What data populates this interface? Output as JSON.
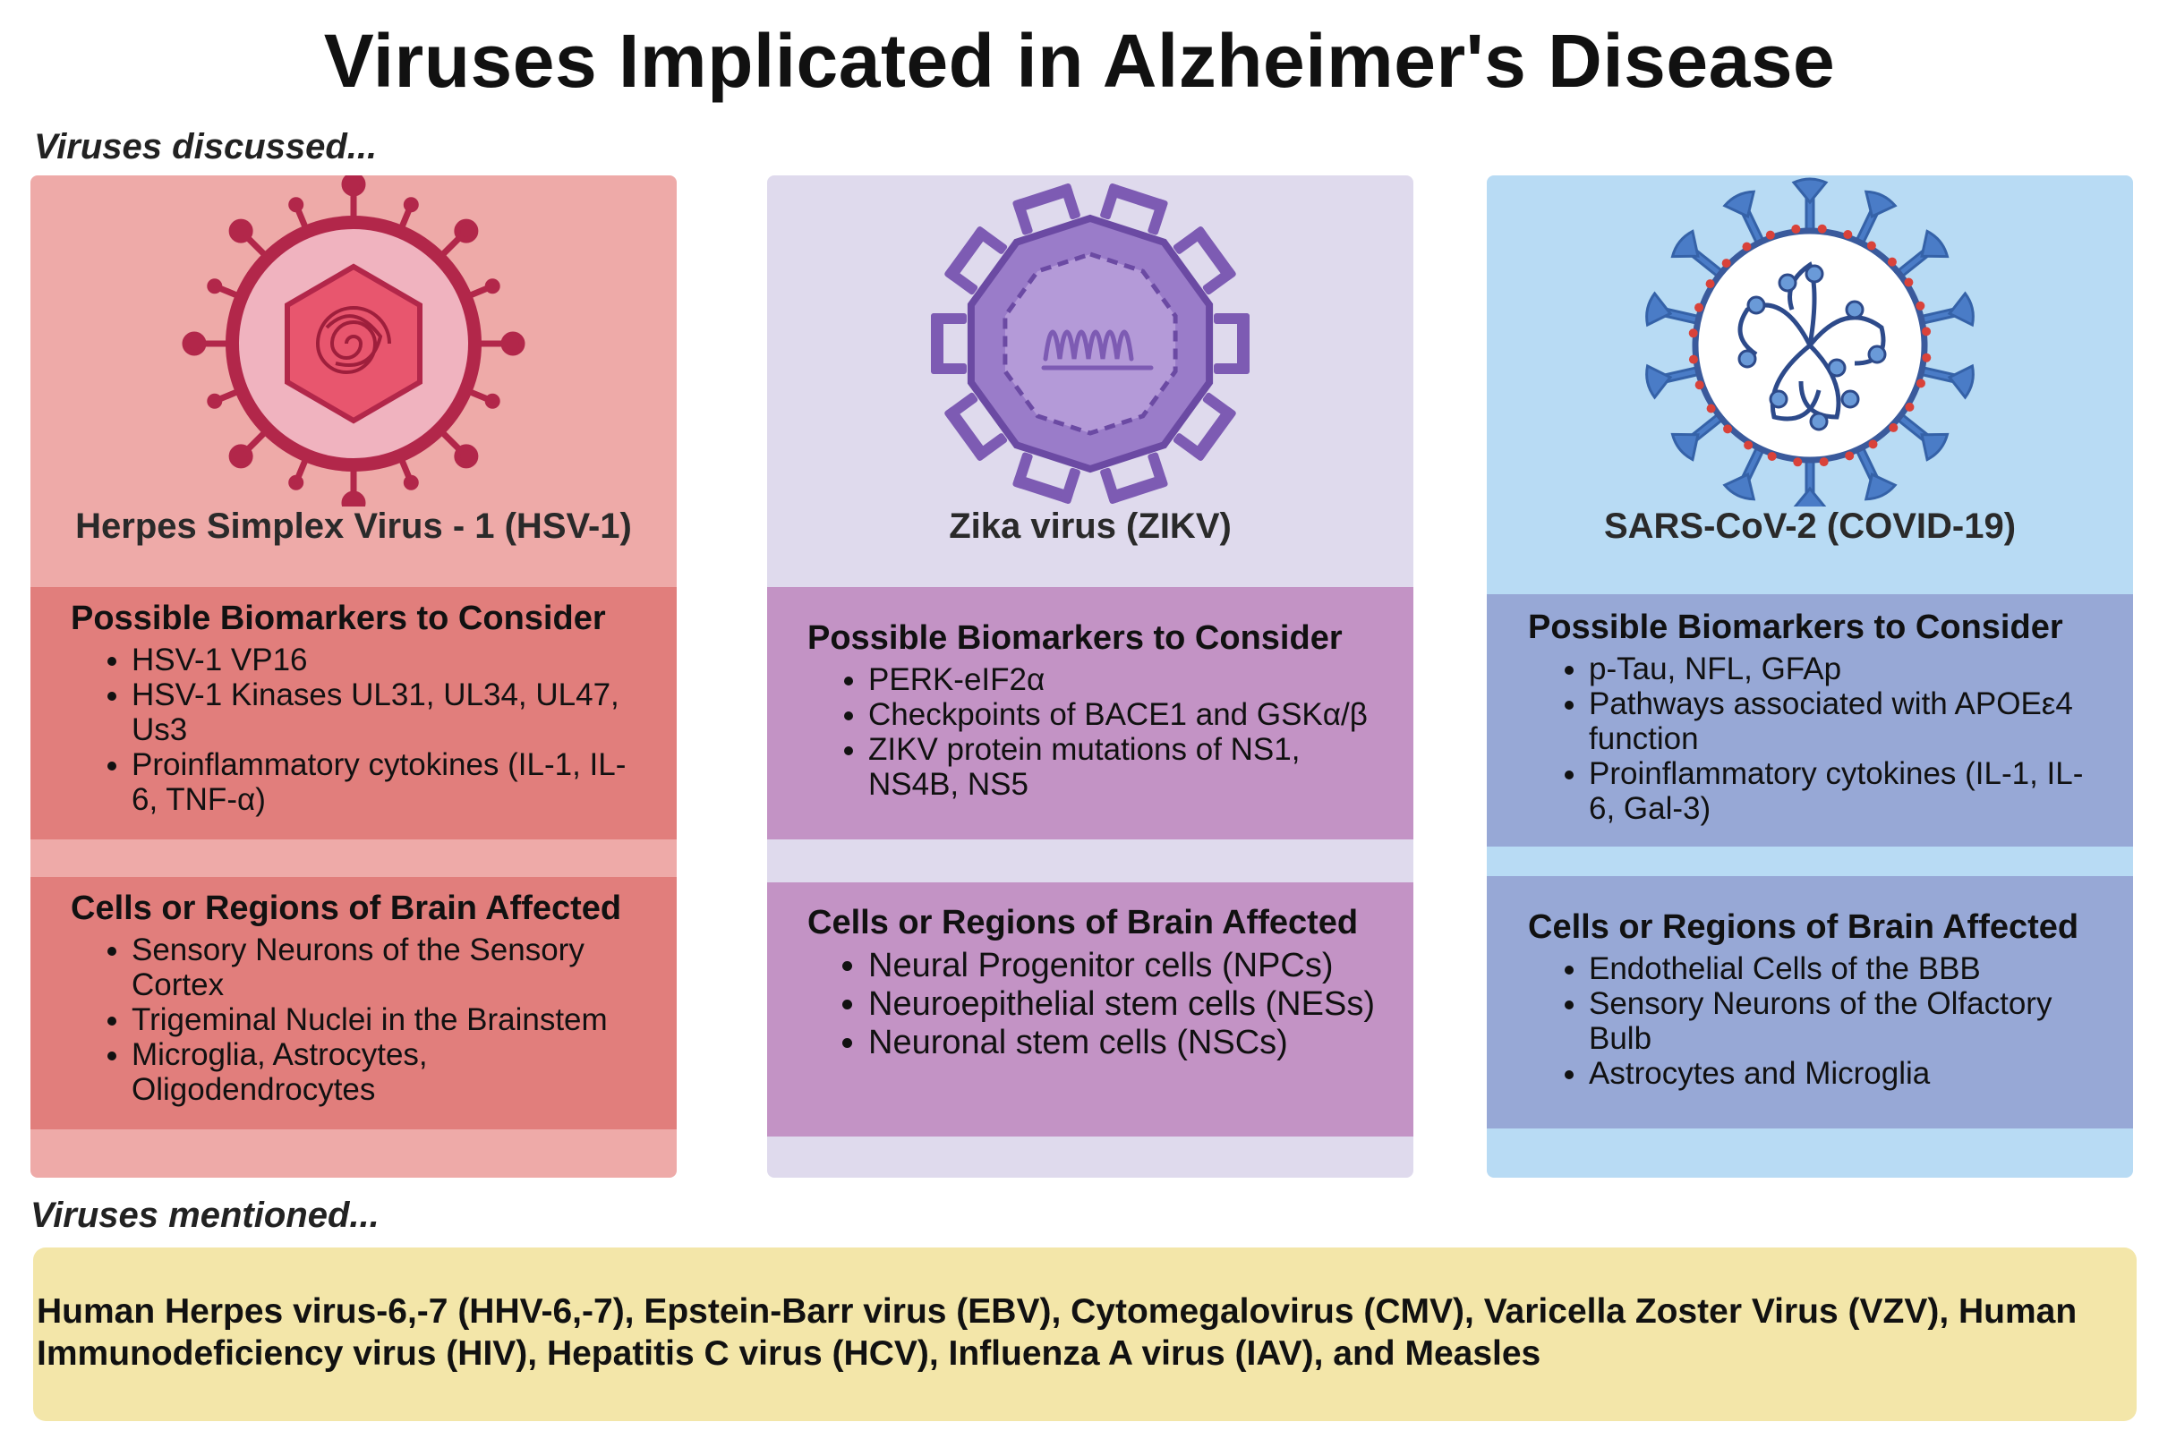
{
  "title": "Viruses Implicated in Alzheimer's Disease",
  "discussed_label": "Viruses discussed...",
  "mentioned_label": "Viruses mentioned...",
  "colors": {
    "hsv_panel": "#eeaaa8",
    "hsv_box": "#e17e7c",
    "hsv_virus": "#b2274a",
    "zika_panel": "#dfdaed",
    "zika_box": "#c393c5",
    "zika_virus": "#7d5bb3",
    "sars_panel": "#b8dbf4",
    "sars_box": "#97a8d6",
    "sars_virus": "#4a7cc7",
    "mentioned_bg": "#f3e6a9"
  },
  "viruses": [
    {
      "name": "Herpes Simplex Virus - 1 (HSV-1)",
      "icon": "herpes-virus-icon",
      "biomarkers_heading": "Possible Biomarkers to Consider",
      "biomarkers": [
        "HSV-1 VP16",
        "HSV-1 Kinases UL31, UL34, UL47, Us3",
        "Proinflammatory cytokines (IL-1, IL-6, TNF-α)"
      ],
      "regions_heading": "Cells or Regions of Brain Affected",
      "regions": [
        "Sensory Neurons of the Sensory Cortex",
        "Trigeminal Nuclei in the Brainstem",
        "Microglia, Astrocytes, Oligodendrocytes"
      ]
    },
    {
      "name": "Zika virus (ZIKV)",
      "icon": "zika-virus-icon",
      "biomarkers_heading": "Possible Biomarkers to Consider",
      "biomarkers": [
        "PERK-eIF2α",
        "Checkpoints of BACE1 and GSKα/β",
        "ZIKV protein mutations of NS1, NS4B, NS5"
      ],
      "regions_heading": "Cells or Regions of Brain Affected",
      "regions": [
        "Neural Progenitor cells (NPCs)",
        "Neuroepithelial stem cells (NESs)",
        "Neuronal stem cells (NSCs)"
      ]
    },
    {
      "name": "SARS-CoV-2 (COVID-19)",
      "icon": "coronavirus-icon",
      "biomarkers_heading": "Possible Biomarkers to Consider",
      "biomarkers": [
        "p-Tau, NFL, GFAp",
        "Pathways associated with APOEε4 function",
        "Proinflammatory cytokines (IL-1, IL-6, Gal-3)"
      ],
      "regions_heading": "Cells or Regions of Brain Affected",
      "regions": [
        "Endothelial Cells of the BBB",
        "Sensory Neurons of the Olfactory Bulb",
        "Astrocytes and Microglia"
      ]
    }
  ],
  "mentioned_text": "Human Herpes virus-6,-7 (HHV-6,-7), Epstein-Barr virus (EBV), Cytomegalovirus (CMV), Varicella Zoster Virus (VZV), Human Immunodeficiency virus (HIV), Hepatitis C virus (HCV), Influenza A virus (IAV), and Measles"
}
